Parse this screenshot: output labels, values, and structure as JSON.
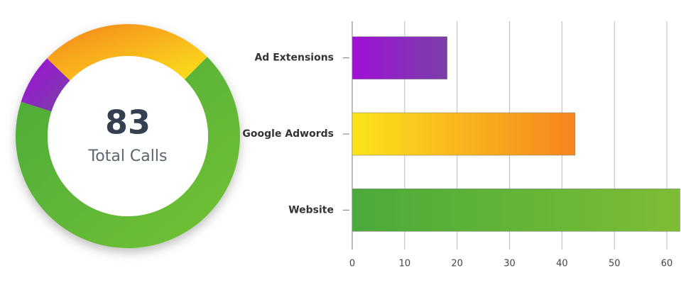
{
  "chart_data": [
    {
      "type": "donut",
      "total": 83,
      "total_label": "Total Calls",
      "values": [
        56,
        6,
        21
      ],
      "start_angle": 45,
      "colors": [
        [
          "#4aaa3a",
          "#74c234"
        ],
        [
          "#a010d8",
          "#7a40a8"
        ],
        [
          "#f5841f",
          "#fbe41a"
        ]
      ]
    },
    {
      "type": "hbar",
      "categories": [
        "Ad Extensions",
        "Google Adwords",
        "Website"
      ],
      "values": [
        18.1,
        42.5,
        62.5
      ],
      "colors": [
        [
          "#a010d8",
          "#7a40a8"
        ],
        [
          "#fbe41a",
          "#f5841f"
        ],
        [
          "#4aaa3a",
          "#7dbd34"
        ]
      ],
      "xlim": [
        0,
        62.7
      ],
      "xticks": [
        0,
        10,
        20,
        30,
        40,
        50,
        60
      ],
      "grid": true
    }
  ]
}
